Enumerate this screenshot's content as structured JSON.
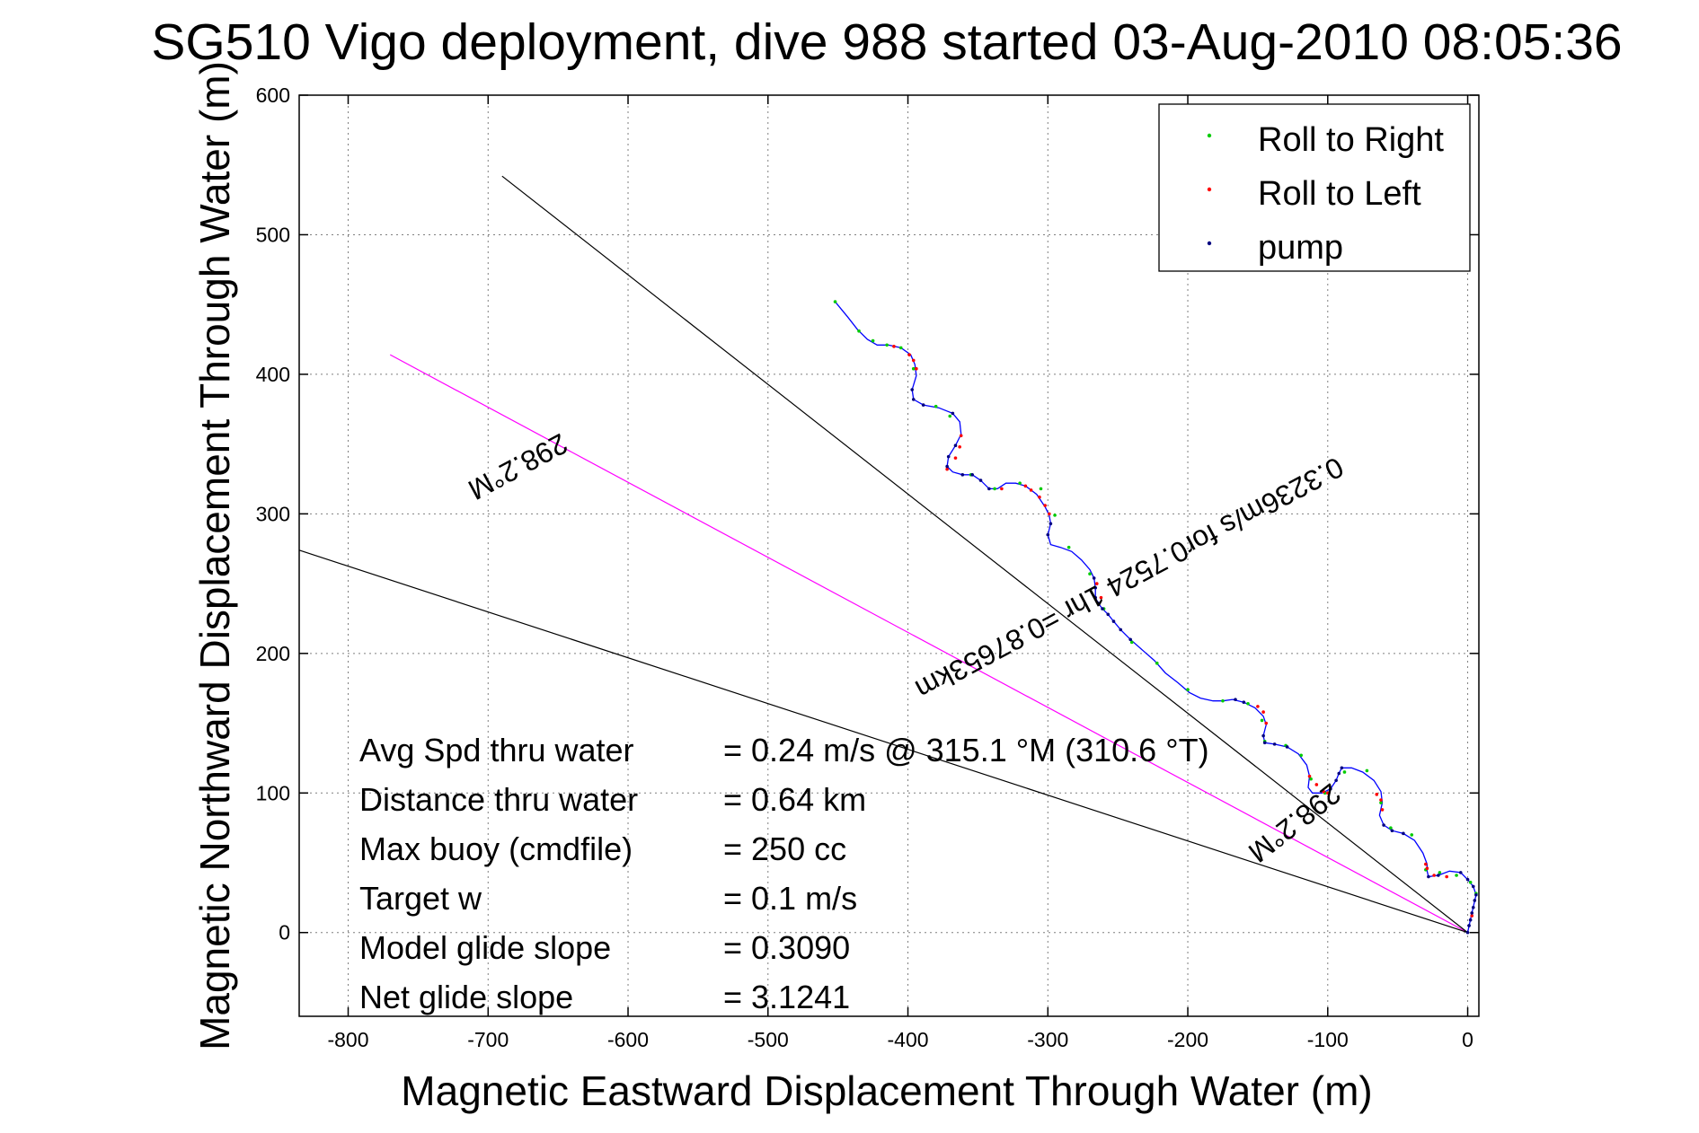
{
  "chart_data": {
    "type": "line",
    "title": "SG510 Vigo deployment, dive 988 started 03-Aug-2010 08:05:36",
    "xlabel": "Magnetic Eastward Displacement Through Water (m)",
    "ylabel": "Magnetic Northward Displacement Through Water (m)",
    "xlim": [
      -835,
      8
    ],
    "ylim": [
      -60,
      600
    ],
    "xticks": [
      -800,
      -700,
      -600,
      -500,
      -400,
      -300,
      -200,
      -100,
      0
    ],
    "yticks": [
      0,
      100,
      200,
      300,
      400,
      500,
      600
    ],
    "grid": true,
    "legend_position": "top-right",
    "legend": [
      {
        "label": "Roll to Right",
        "color": "#00cc00"
      },
      {
        "label": "Roll to Left",
        "color": "#ff0000"
      },
      {
        "label": "pump",
        "color": "#000080"
      }
    ],
    "colors": {
      "track": "#0000ff",
      "roll_right": "#00cc00",
      "roll_left": "#ff0000",
      "pump": "#000080",
      "heading_line": "#ff00ff",
      "reference_line": "#000000"
    },
    "series": [
      {
        "x": [
          -452,
          -443,
          -436,
          -429,
          -422,
          -414,
          -405,
          -398,
          -395,
          -394,
          -397,
          -396,
          -389,
          -378,
          -368,
          -363,
          -362,
          -366,
          -371,
          -372,
          -368,
          -361,
          -354,
          -348,
          -342,
          -336,
          -330,
          -323,
          -316,
          -308,
          -302,
          -299,
          -298,
          -300,
          -298,
          -291,
          -283,
          -276,
          -270,
          -267,
          -266,
          -266,
          -264,
          -261,
          -257,
          -253,
          -248,
          -241,
          -232,
          -224,
          -216,
          -207,
          -199,
          -191,
          -182,
          -175,
          -168,
          -160,
          -152,
          -146,
          -144,
          -146,
          -145,
          -138,
          -129,
          -121,
          -115,
          -113,
          -114,
          -111,
          -104,
          -98,
          -94,
          -92,
          -90,
          -83,
          -75,
          -67,
          -62,
          -61,
          -63,
          -60,
          -54,
          -46,
          -38,
          -32,
          -29,
          -29,
          -28,
          -21,
          -13,
          -5,
          0,
          4,
          6,
          3,
          0
        ],
        "y": [
          452,
          441,
          432,
          425,
          421,
          421,
          419,
          414,
          407,
          399,
          389,
          382,
          378,
          376,
          372,
          366,
          357,
          349,
          341,
          334,
          330,
          328,
          328,
          324,
          318,
          318,
          322,
          322,
          320,
          314,
          305,
          299,
          293,
          285,
          278,
          276,
          273,
          267,
          260,
          254,
          247,
          240,
          236,
          232,
          228,
          223,
          217,
          210,
          202,
          195,
          186,
          179,
          172,
          168,
          166,
          166,
          167,
          165,
          161,
          155,
          149,
          141,
          136,
          135,
          133,
          128,
          120,
          112,
          104,
          100,
          100,
          103,
          109,
          114,
          118,
          118,
          115,
          109,
          101,
          93,
          84,
          77,
          73,
          71,
          66,
          57,
          49,
          44,
          40,
          41,
          44,
          43,
          38,
          33,
          27,
          14,
          0
        ]
      },
      {
        "name": "Roll to Right",
        "x": [
          -452,
          -435,
          -425,
          -415,
          -405,
          -396,
          -380,
          -370,
          -355,
          -338,
          -320,
          -305,
          -295,
          -285,
          -270,
          -260,
          -240,
          -222,
          -200,
          -175,
          -157,
          -147,
          -145,
          -130,
          -119,
          -112,
          -102,
          -88,
          -72,
          -62,
          -55,
          -40,
          -30,
          -20,
          -8,
          2,
          6
        ],
        "y": [
          452,
          431,
          424,
          421,
          419,
          404,
          377,
          370,
          328,
          318,
          322,
          318,
          299,
          276,
          257,
          232,
          208,
          193,
          174,
          166,
          164,
          152,
          137,
          134,
          127,
          110,
          100,
          115,
          116,
          93,
          75,
          70,
          45,
          43,
          41,
          36,
          28
        ]
      },
      {
        "name": "Roll to Left",
        "x": [
          -410,
          -399,
          -396,
          -394,
          -372,
          -366,
          -363,
          -362,
          -333,
          -316,
          -312,
          -306,
          -302,
          -299,
          -265,
          -262,
          -150,
          -146,
          -144,
          -113,
          -108,
          -103,
          -100,
          -65,
          -62,
          -61,
          -30,
          -29,
          -24,
          -15,
          3
        ],
        "y": [
          420,
          414,
          410,
          404,
          332,
          340,
          348,
          356,
          318,
          320,
          317,
          312,
          306,
          300,
          250,
          240,
          162,
          158,
          150,
          112,
          106,
          101,
          100,
          99,
          95,
          88,
          49,
          46,
          41,
          40,
          12
        ]
      },
      {
        "name": "pump",
        "x": [
          -397,
          -396,
          -389,
          -368,
          -366,
          -371,
          -372,
          -361,
          -354,
          -348,
          -342,
          -298,
          -300,
          -267,
          -266,
          -266,
          -264,
          -261,
          -257,
          -253,
          -248,
          -241,
          -166,
          -160,
          -146,
          -145,
          -138,
          -129,
          -98,
          -94,
          -92,
          -90,
          -60,
          -54,
          -46,
          -28,
          -21,
          -5,
          0,
          4,
          6,
          5,
          4,
          3,
          2,
          1,
          0
        ],
        "y": [
          389,
          382,
          378,
          372,
          349,
          341,
          334,
          328,
          328,
          324,
          318,
          293,
          285,
          254,
          247,
          240,
          236,
          232,
          228,
          223,
          217,
          210,
          167,
          165,
          141,
          136,
          135,
          133,
          103,
          109,
          114,
          118,
          77,
          73,
          71,
          40,
          41,
          43,
          38,
          33,
          27,
          23,
          18,
          14,
          9,
          5,
          0
        ]
      }
    ],
    "reference_lines": [
      {
        "x": [
          0,
          -770
        ],
        "y": [
          0,
          414
        ],
        "color": "#ff00ff",
        "label": "298.2°M"
      },
      {
        "x": [
          0,
          -690
        ],
        "y": [
          0,
          542
        ],
        "color": "#000000",
        "label": "298.2°M"
      },
      {
        "x": [
          0,
          -835
        ],
        "y": [
          0,
          274
        ],
        "color": "#000000"
      }
    ],
    "annotations": [
      {
        "text": "298.2°M",
        "x": -682,
        "y": 340,
        "rotation": 151.8
      },
      {
        "text": "0.3236m/s for0.7524 1hr =0.87653km",
        "x": -245,
        "y": 260,
        "rotation": 151.8
      },
      {
        "text": "298.2°M",
        "x": -128,
        "y": 84,
        "rotation": 141.9
      }
    ],
    "stats": [
      {
        "label": "Avg Spd thru water",
        "value": "=  0.24 m/s @ 315.1 °M (310.6 °T)"
      },
      {
        "label": "Distance thru water",
        "value": "=  0.64 km"
      },
      {
        "label": "Max buoy (cmdfile)",
        "value": "= 250 cc"
      },
      {
        "label": "Target w",
        "value": "= 0.1 m/s"
      },
      {
        "label": "Model glide slope",
        "value": "= 0.3090"
      },
      {
        "label": "Net glide slope",
        "value": "= 3.1241"
      }
    ]
  }
}
